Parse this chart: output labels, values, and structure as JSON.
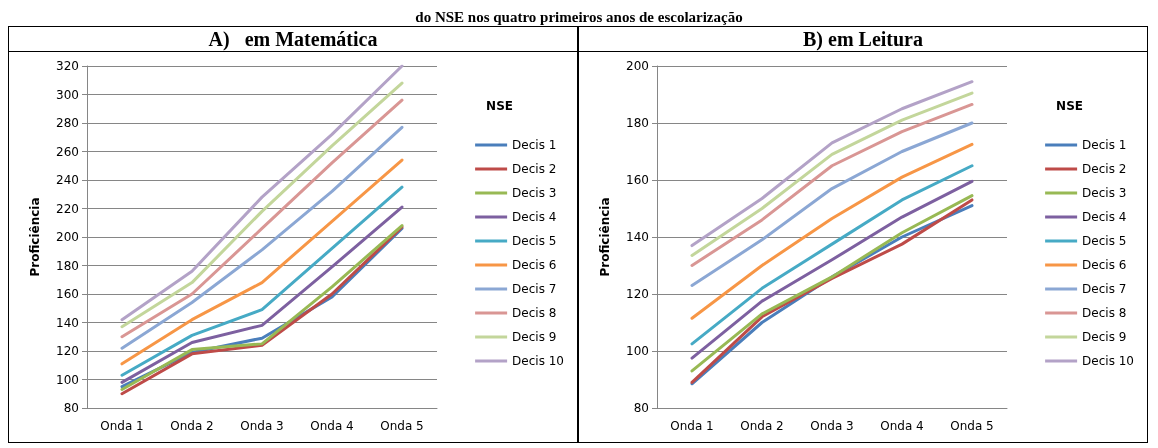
{
  "chart_data": [
    {
      "type": "line",
      "title": "A)   em Matemática",
      "annotations": [
        "do NSE nos quatro primeiros anos de escolarização"
      ],
      "ylabel": "Proficiência",
      "legend_title": "NSE",
      "legend": "right",
      "grid": "y",
      "marker": "none",
      "line_style": "solid",
      "categories": [
        "Onda 1",
        "Onda 2",
        "Onda 3",
        "Onda 4",
        "Onda 5"
      ],
      "ylim": [
        80,
        320
      ],
      "yticks": [
        80,
        100,
        120,
        140,
        160,
        180,
        200,
        220,
        240,
        260,
        280,
        300,
        320
      ],
      "series": [
        {
          "name": "Decis 1",
          "color": "#4a7ebb",
          "values": [
            95,
            119,
            129,
            158,
            206
          ]
        },
        {
          "name": "Decis 2",
          "color": "#be4b48",
          "values": [
            90,
            118,
            124,
            160,
            207
          ]
        },
        {
          "name": "Decis 3",
          "color": "#98b954",
          "values": [
            93,
            121,
            125,
            165,
            208
          ]
        },
        {
          "name": "Decis 4",
          "color": "#7d60a0",
          "values": [
            98,
            126,
            138,
            179,
            221
          ]
        },
        {
          "name": "Decis 5",
          "color": "#46aac5",
          "values": [
            103,
            131,
            149,
            192,
            235
          ]
        },
        {
          "name": "Decis 6",
          "color": "#f79646",
          "values": [
            111,
            142,
            168,
            211,
            254
          ]
        },
        {
          "name": "Decis 7",
          "color": "#8ba7d4",
          "values": [
            122,
            154,
            191,
            232,
            277
          ]
        },
        {
          "name": "Decis 8",
          "color": "#d99694",
          "values": [
            130,
            160,
            206,
            252,
            296
          ]
        },
        {
          "name": "Decis 9",
          "color": "#c3d69b",
          "values": [
            137,
            168,
            218,
            264,
            308
          ]
        },
        {
          "name": "Decis 10",
          "color": "#b3a2c7",
          "values": [
            142,
            176,
            228,
            272,
            320
          ]
        }
      ]
    },
    {
      "type": "line",
      "title": "B) em Leitura",
      "ylabel": "Proficiência",
      "legend_title": "NSE",
      "legend": "right",
      "grid": "y",
      "marker": "none",
      "line_style": "solid",
      "categories": [
        "Onda 1",
        "Onda 2",
        "Onda 3",
        "Onda 4",
        "Onda 5"
      ],
      "ylim": [
        80,
        200
      ],
      "yticks": [
        80,
        100,
        120,
        140,
        160,
        180,
        200
      ],
      "series": [
        {
          "name": "Decis 1",
          "color": "#4a7ebb",
          "values": [
            88.5,
            110,
            126,
            140,
            151
          ]
        },
        {
          "name": "Decis 2",
          "color": "#be4b48",
          "values": [
            89,
            112,
            125.5,
            137.5,
            153
          ]
        },
        {
          "name": "Decis 3",
          "color": "#98b954",
          "values": [
            93,
            113,
            126,
            141.5,
            154.5
          ]
        },
        {
          "name": "Decis 4",
          "color": "#7d60a0",
          "values": [
            97.5,
            117.5,
            132,
            147,
            159.5
          ]
        },
        {
          "name": "Decis 5",
          "color": "#46aac5",
          "values": [
            102.5,
            122,
            137.5,
            153,
            165
          ]
        },
        {
          "name": "Decis 6",
          "color": "#f79646",
          "values": [
            111.5,
            130,
            146.5,
            161,
            172.5
          ]
        },
        {
          "name": "Decis 7",
          "color": "#8ba7d4",
          "values": [
            123,
            139,
            157,
            170,
            180
          ]
        },
        {
          "name": "Decis 8",
          "color": "#d99694",
          "values": [
            130,
            146,
            165,
            177,
            186.5
          ]
        },
        {
          "name": "Decis 9",
          "color": "#c3d69b",
          "values": [
            133.5,
            150,
            169,
            181,
            190.5
          ]
        },
        {
          "name": "Decis 10",
          "color": "#b3a2c7",
          "values": [
            137,
            153.5,
            173,
            185,
            194.5
          ]
        }
      ]
    }
  ]
}
